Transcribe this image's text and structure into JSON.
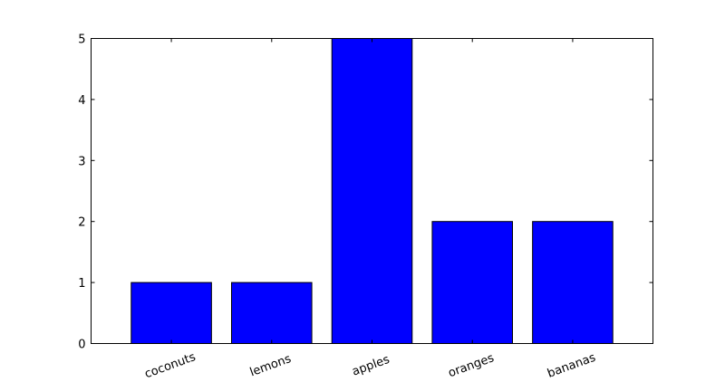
{
  "chart_data": {
    "type": "bar",
    "categories": [
      "coconuts",
      "lemons",
      "apples",
      "oranges",
      "bananas"
    ],
    "values": [
      1,
      1,
      5,
      2,
      2
    ],
    "title": "",
    "xlabel": "",
    "ylabel": "",
    "ylim": [
      0,
      5
    ],
    "yticks": [
      0,
      1,
      2,
      3,
      4,
      5
    ],
    "grid": false,
    "bar_color": "#0000ff",
    "bar_edge_color": "#000000"
  }
}
